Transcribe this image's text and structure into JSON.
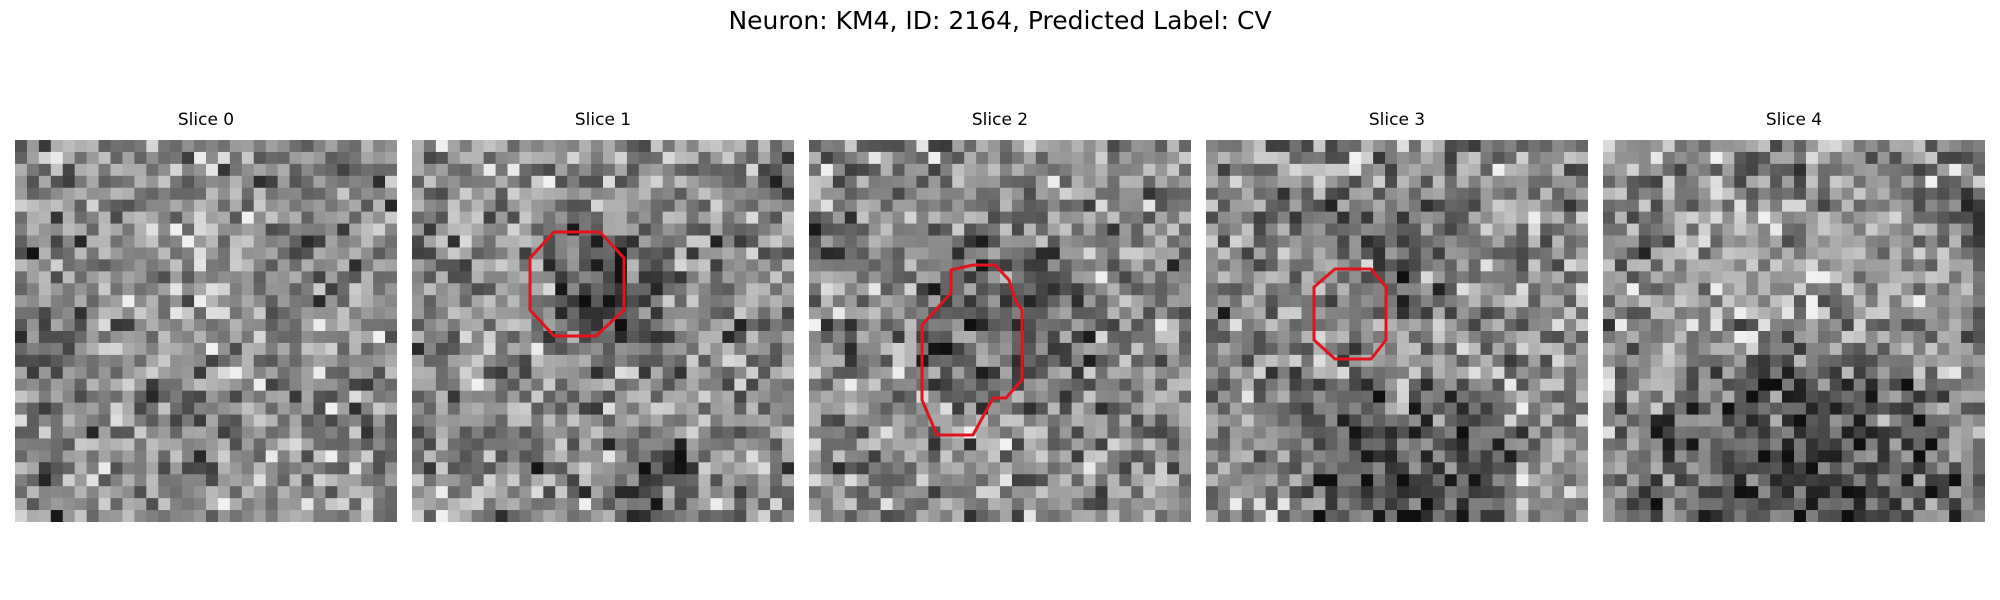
{
  "figure": {
    "title": "Neuron: KM4, ID: 2164, Predicted Label: CV"
  },
  "colors": {
    "roi_outline": "#e0141a"
  },
  "panels": [
    {
      "title": "Slice 0",
      "has_roi": false
    },
    {
      "title": "Slice 1",
      "has_roi": true
    },
    {
      "title": "Slice 2",
      "has_roi": true
    },
    {
      "title": "Slice 3",
      "has_roi": true
    },
    {
      "title": "Slice 4",
      "has_roi": false
    }
  ]
}
